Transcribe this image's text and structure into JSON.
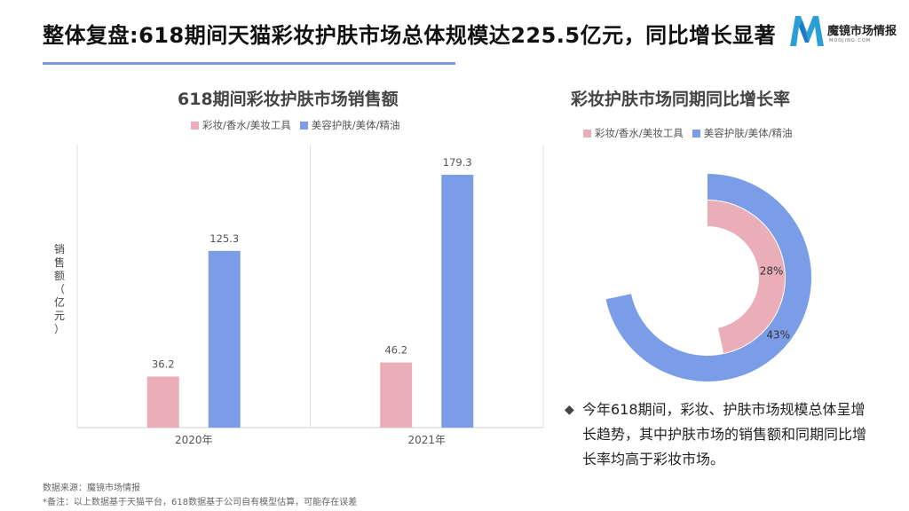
{
  "header": {
    "title": "整体复盘:618期间天猫彩妆护肤市场总体规模达225.5亿元，同比增长显著",
    "logo_text": "魔镜市场情报",
    "logo_sub": "MOOJING.COM"
  },
  "colors": {
    "makeup": "#e9aeb7",
    "skincare": "#7b9de8",
    "accent": "#7a97e6"
  },
  "chart_data": [
    {
      "type": "bar",
      "title": "618期间彩妆护肤市场销售额",
      "ylabel": "销售额（亿元）",
      "categories": [
        "2020年",
        "2021年"
      ],
      "series": [
        {
          "name": "彩妆/香水/美妆工具",
          "values": [
            36.2,
            46.2
          ]
        },
        {
          "name": "美容护肤/美体/精油",
          "values": [
            125.3,
            179.3
          ]
        }
      ],
      "ylim": [
        0,
        200
      ],
      "legend": "top",
      "grid": false
    },
    {
      "type": "pie",
      "subtype": "radial-bar",
      "title": "彩妆护肤市场同期同比增长率",
      "series": [
        {
          "name": "彩妆/香水/美妆工具",
          "value": 28,
          "label": "28%"
        },
        {
          "name": "美容护肤/美体/精油",
          "value": 43,
          "label": "43%"
        }
      ],
      "legend": "top"
    }
  ],
  "note": {
    "bullet": "◆",
    "text": "今年618期间，彩妆、护肤市场规模总体呈增长趋势，其中护肤市场的销售额和同期同比增长率均高于彩妆市场。"
  },
  "footer": {
    "source": "数据来源：魔镜市场情报",
    "remark": "*备注：以上数据基于天猫平台，618数据基于公司自有模型估算，可能存在误差"
  }
}
